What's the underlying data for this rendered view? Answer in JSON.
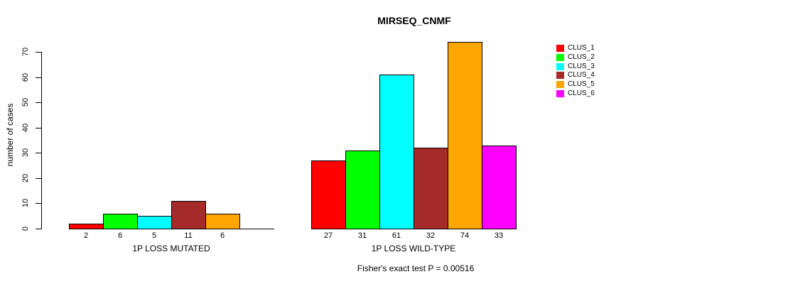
{
  "chart_data": {
    "type": "bar",
    "title": "MIRSEQ_CNMF",
    "ylabel": "number of cases",
    "ylim": [
      0,
      70
    ],
    "yticks": [
      0,
      10,
      20,
      30,
      40,
      50,
      60,
      70
    ],
    "grid": false,
    "legend_position": "right",
    "categories": [
      "1P LOSS MUTATED",
      "1P LOSS WILD-TYPE"
    ],
    "series": [
      {
        "name": "CLUS_1",
        "color": "#ff0000",
        "values": [
          2,
          27
        ]
      },
      {
        "name": "CLUS_2",
        "color": "#00ff00",
        "values": [
          6,
          31
        ]
      },
      {
        "name": "CLUS_3",
        "color": "#00ffff",
        "values": [
          5,
          61
        ]
      },
      {
        "name": "CLUS_4",
        "color": "#a52a2a",
        "values": [
          11,
          32
        ]
      },
      {
        "name": "CLUS_5",
        "color": "#ffa500",
        "values": [
          6,
          74
        ]
      },
      {
        "name": "CLUS_6",
        "color": "#ff00ff",
        "values": [
          0,
          33
        ]
      }
    ],
    "bar_value_labels_shown": true,
    "zero_value_labels_hidden": true,
    "annotation": "Fisher's exact test P = 0.00516",
    "axis_color": "#000000",
    "background_color": "#ffffff"
  }
}
